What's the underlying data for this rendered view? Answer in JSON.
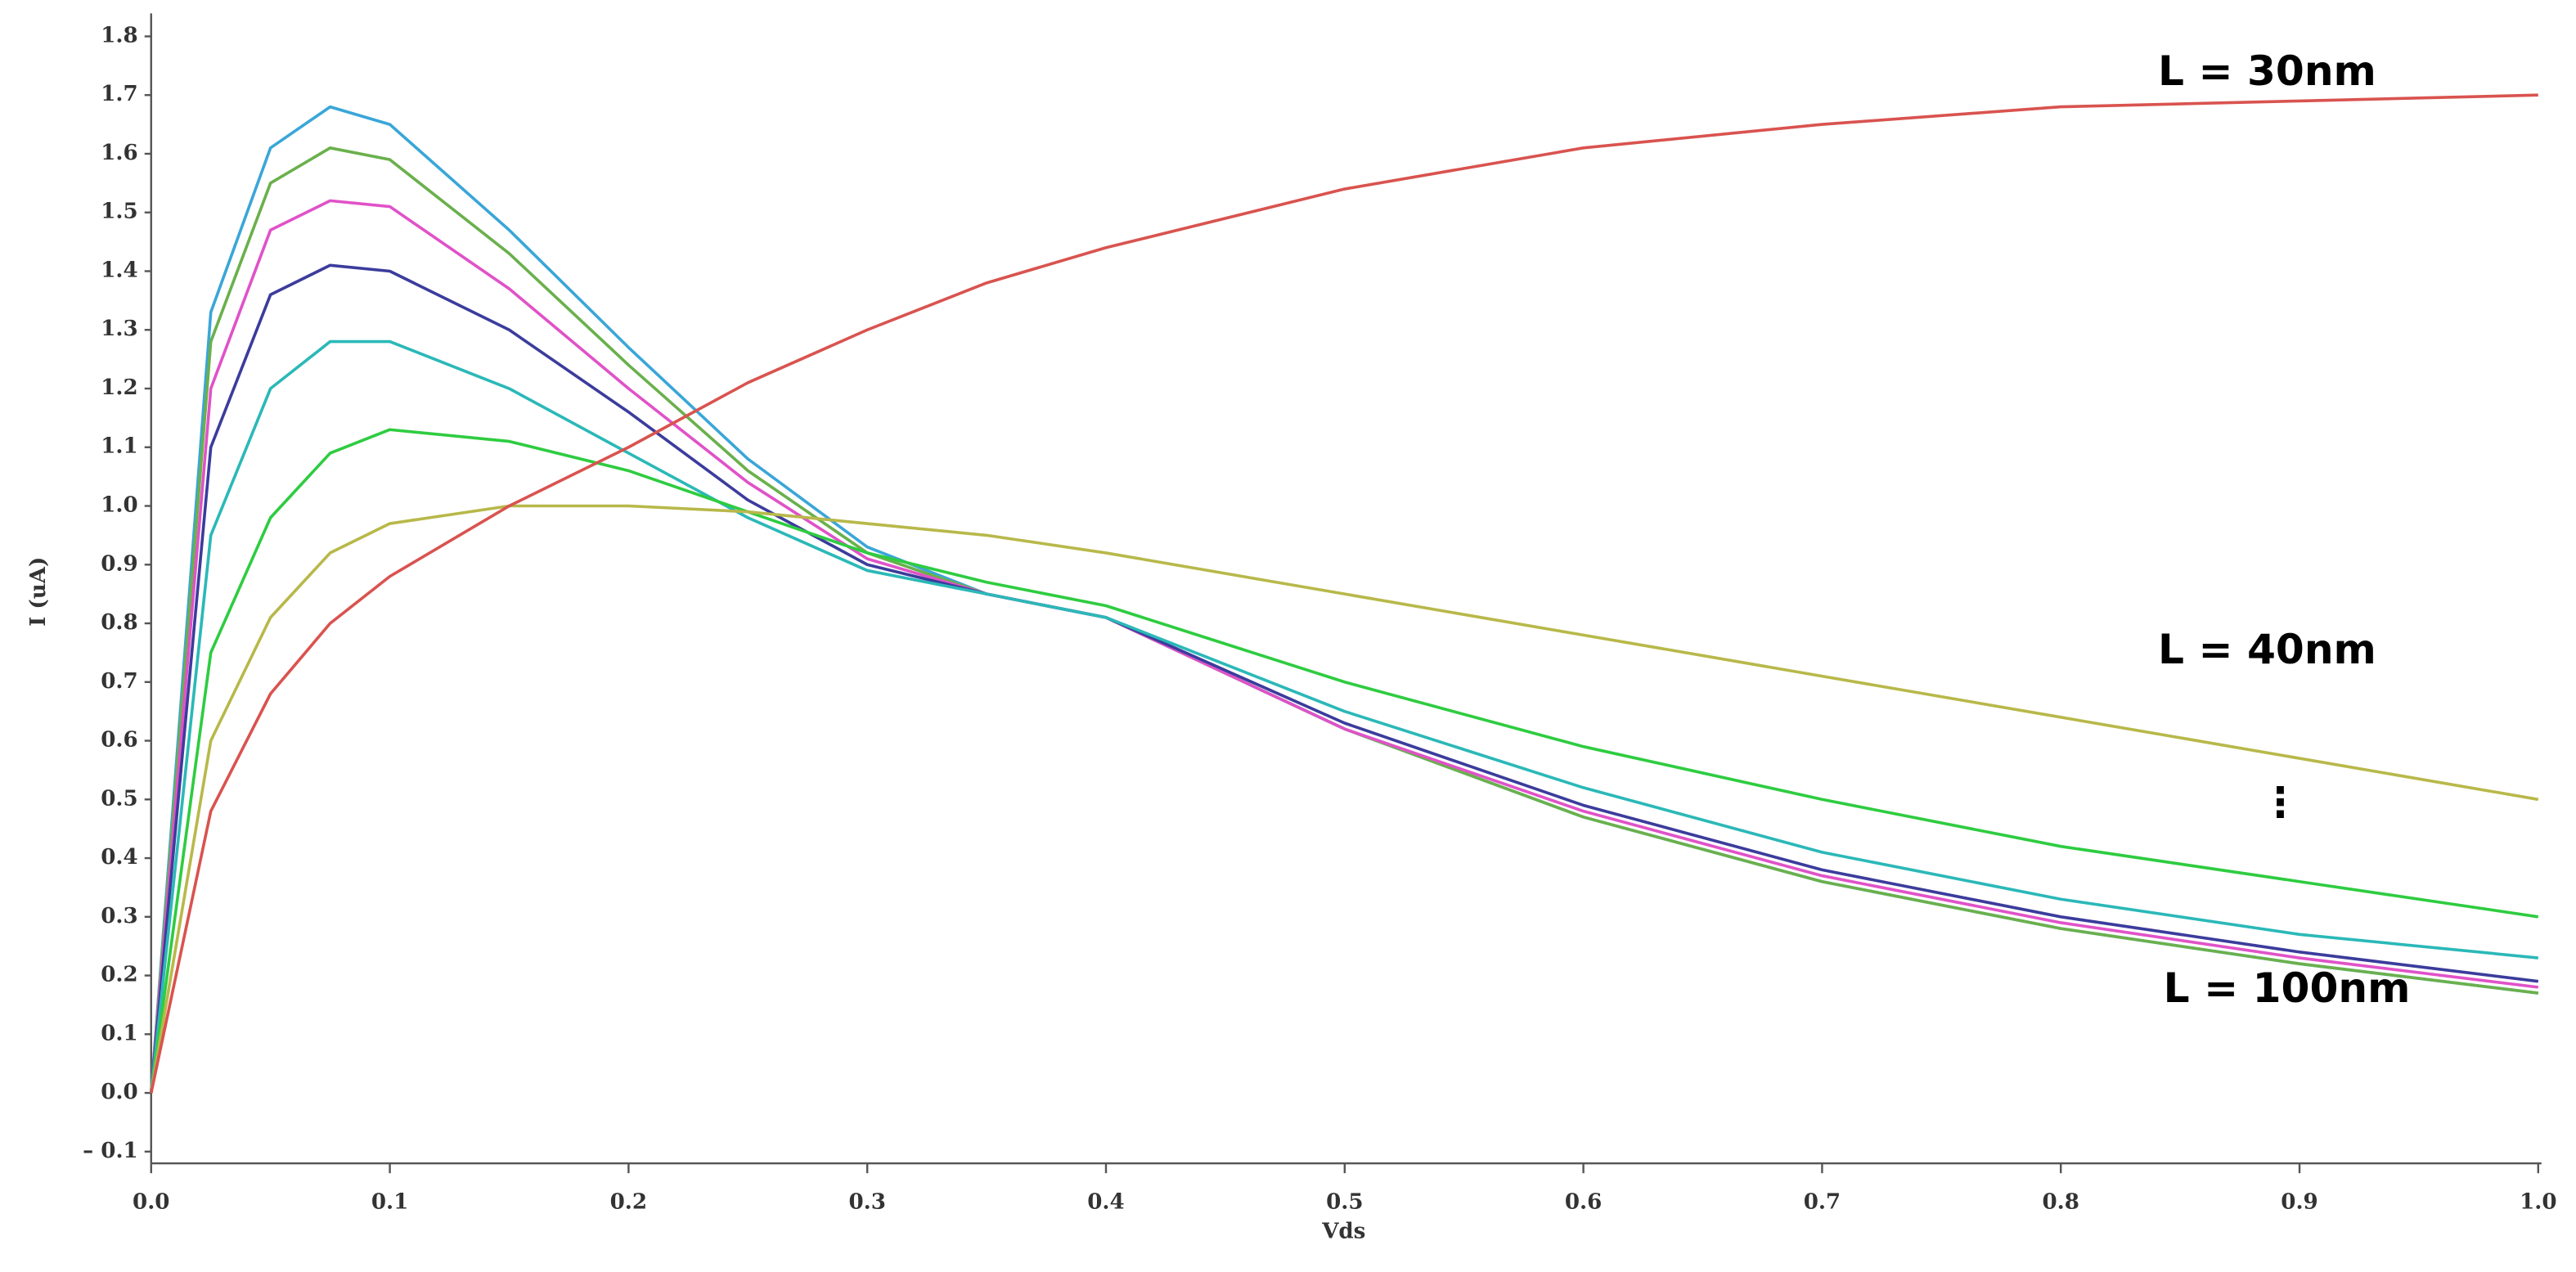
{
  "chart_data": {
    "type": "line",
    "x_label": "Vds",
    "y_label": "I (uA)",
    "x": [
      0,
      0.025,
      0.05,
      0.075,
      0.1,
      0.15,
      0.2,
      0.25,
      0.3,
      0.35,
      0.4,
      0.5,
      0.6,
      0.7,
      0.8,
      0.9,
      1.0
    ],
    "series": [
      {
        "color": "#3aa6d8",
        "values": [
          0,
          1.33,
          1.61,
          1.68,
          1.65,
          1.47,
          1.27,
          1.08,
          0.93,
          0.85,
          0.81,
          0.62,
          0.47,
          0.36,
          0.28,
          0.22,
          0.17
        ]
      },
      {
        "color": "#6ab04c",
        "values": [
          0,
          1.28,
          1.55,
          1.61,
          1.59,
          1.43,
          1.24,
          1.06,
          0.92,
          0.85,
          0.81,
          0.62,
          0.47,
          0.36,
          0.28,
          0.22,
          0.17
        ]
      },
      {
        "color": "#e052c8",
        "values": [
          0,
          1.2,
          1.47,
          1.52,
          1.51,
          1.37,
          1.2,
          1.04,
          0.91,
          0.85,
          0.81,
          0.62,
          0.48,
          0.37,
          0.29,
          0.23,
          0.18
        ]
      },
      {
        "color": "#3b3c9c",
        "values": [
          0,
          1.1,
          1.36,
          1.41,
          1.4,
          1.3,
          1.16,
          1.01,
          0.9,
          0.85,
          0.81,
          0.63,
          0.49,
          0.38,
          0.3,
          0.24,
          0.19
        ]
      },
      {
        "color": "#2bb8b8",
        "values": [
          0,
          0.95,
          1.2,
          1.28,
          1.28,
          1.2,
          1.09,
          0.98,
          0.89,
          0.85,
          0.81,
          0.65,
          0.52,
          0.41,
          0.33,
          0.27,
          0.23
        ]
      },
      {
        "color": "#2ecc40",
        "values": [
          0,
          0.75,
          0.98,
          1.09,
          1.13,
          1.11,
          1.06,
          0.99,
          0.92,
          0.87,
          0.83,
          0.7,
          0.59,
          0.5,
          0.42,
          0.36,
          0.3
        ]
      },
      {
        "color": "#b8b84a",
        "values": [
          0,
          0.6,
          0.81,
          0.92,
          0.97,
          1.0,
          1.0,
          0.99,
          0.97,
          0.95,
          0.92,
          0.85,
          0.78,
          0.71,
          0.64,
          0.57,
          0.5
        ]
      },
      {
        "color": "#d9534f",
        "values": [
          0,
          0.48,
          0.68,
          0.8,
          0.88,
          1.0,
          1.1,
          1.21,
          1.3,
          1.38,
          1.44,
          1.54,
          1.61,
          1.65,
          1.68,
          1.69,
          1.7
        ]
      }
    ],
    "annotations": [
      "L = 30nm",
      "L = 40nm",
      "⋮",
      "L = 100nm"
    ],
    "xlim": [
      0,
      1
    ],
    "ylim": [
      -0.12,
      1.8
    ],
    "xticks": [
      {
        "value": 0,
        "label": "0.0"
      },
      0.1,
      0.2,
      0.3,
      0.4,
      0.5,
      0.6,
      0.7,
      0.8,
      0.9,
      {
        "value": 1,
        "label": "1.0"
      }
    ],
    "yticks": [
      {
        "value": -0.1,
        "label": "– 0.1"
      },
      {
        "value": 0,
        "label": "0.0"
      },
      0.1,
      0.2,
      0.3,
      0.4,
      0.5,
      0.6,
      0.7,
      0.8,
      0.9,
      {
        "value": 1,
        "label": "1.0"
      },
      1.1,
      1.2,
      1.3,
      1.4,
      1.5,
      1.6,
      1.7,
      1.8
    ],
    "grid": false
  }
}
